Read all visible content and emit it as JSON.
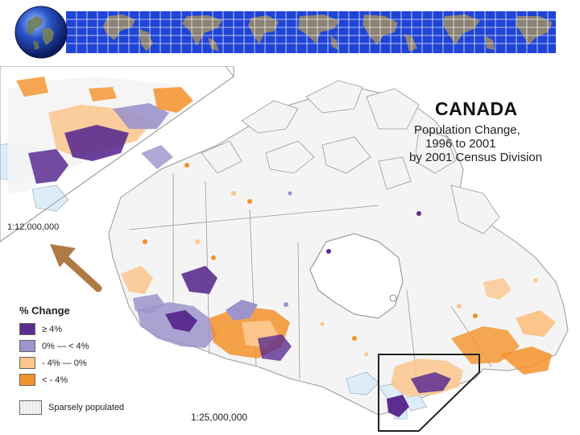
{
  "map": {
    "title": "CANADA",
    "subtitle_lines": [
      "Population Change,",
      "1996 to 2001",
      "by 2001 Census Division"
    ],
    "main_scale": "1:25,000,000",
    "inset_scale": "1:12,000,000"
  },
  "legend": {
    "title": "% Change",
    "items": [
      {
        "label": "≥ 4%",
        "color": "#5b2d90"
      },
      {
        "label": "0% — < 4%",
        "color": "#9c94cb"
      },
      {
        "label": "- 4% — 0%",
        "color": "#fbc58c"
      },
      {
        "label": "< - 4%",
        "color": "#f4922b"
      }
    ],
    "sparse_label": "Sparsely populated"
  },
  "colors": {
    "banner_blue": "#1f44d6",
    "land_gray": "#8a8275",
    "water": "#dcedf7",
    "land": "#f5f5f5",
    "arrow": "#b07a45",
    "border": "#222222"
  }
}
